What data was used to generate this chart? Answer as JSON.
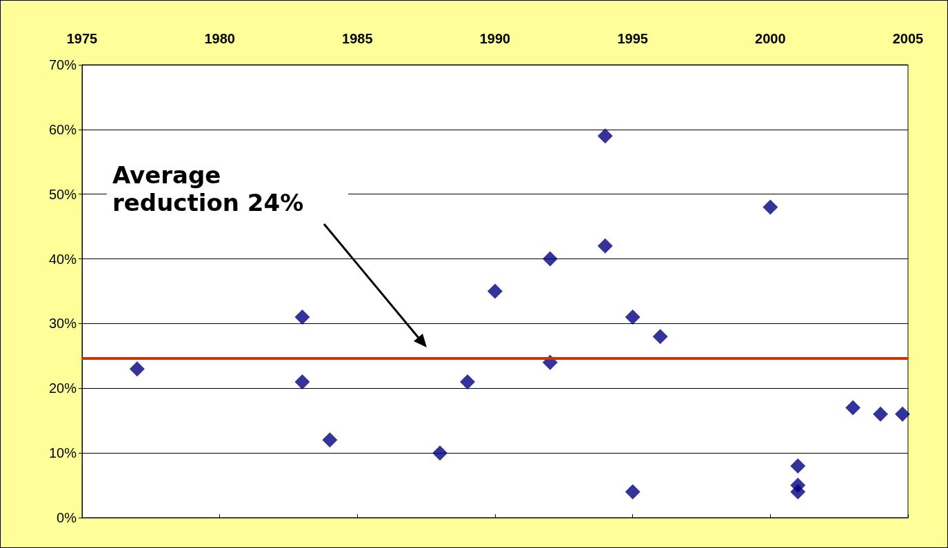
{
  "chart_data": {
    "type": "scatter",
    "marker": "diamond",
    "grid": "y",
    "x": [
      1977,
      1983,
      1983,
      1984,
      1988,
      1989,
      1990,
      1992,
      1992,
      1994,
      1994,
      1995,
      1995,
      1996,
      2000,
      2001,
      2001,
      2001,
      2003,
      2004,
      2004.8
    ],
    "series": [
      {
        "color": "#000080",
        "values": [
          23,
          31,
          21,
          12,
          10,
          21,
          35,
          40,
          24,
          59,
          42,
          31,
          4,
          28,
          48,
          8,
          5,
          4,
          17,
          16,
          16
        ]
      }
    ],
    "xlim": [
      1975,
      2005
    ],
    "xticks": [
      1975,
      1980,
      1985,
      1990,
      1995,
      2000,
      2005
    ],
    "ylim": [
      0,
      70
    ],
    "yticks": [
      {
        "value": 0,
        "label": "0%"
      },
      {
        "value": 10,
        "label": "10%"
      },
      {
        "value": 20,
        "label": "20%"
      },
      {
        "value": 30,
        "label": "30%"
      },
      {
        "value": 40,
        "label": "40%"
      },
      {
        "value": 50,
        "label": "50%"
      },
      {
        "value": 60,
        "label": "60%"
      },
      {
        "value": 70,
        "label": "70%"
      }
    ],
    "ref_lines": [
      {
        "axis": "y",
        "value": 24.6,
        "color": "#cc3300",
        "line_style": "solid"
      }
    ],
    "annotations": [
      "Average\nreduction 24%"
    ]
  }
}
